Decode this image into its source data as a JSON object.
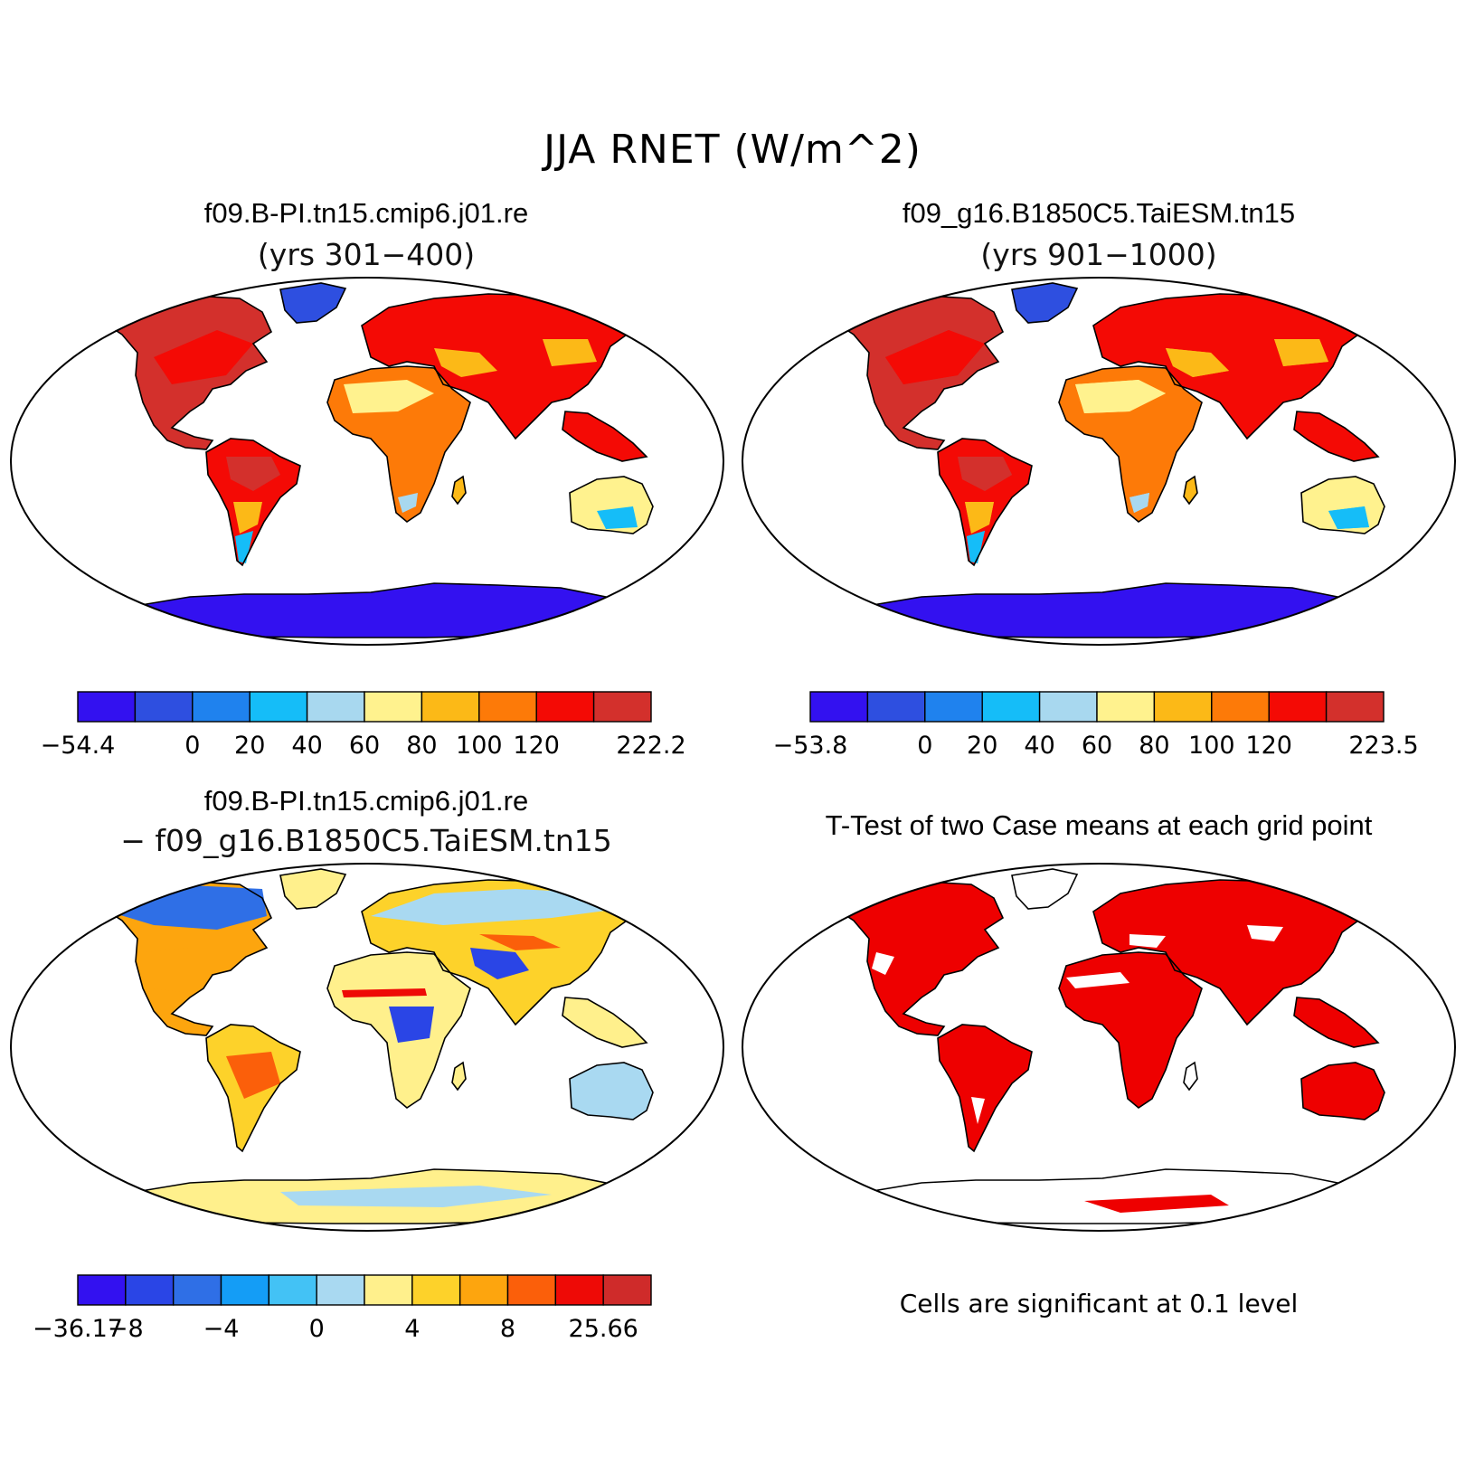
{
  "title": "JJA RNET (W/m^2)",
  "panels": {
    "case1": {
      "title": "f09.B-PI.tn15.cmip6.j01.re",
      "subtitle": "(yrs 301−400)",
      "colors": [
        "#3311f0",
        "#2e4fe0",
        "#1f82ee",
        "#15bdf8",
        "#a8d8ef",
        "#fff28e",
        "#fcb917",
        "#fd7a08",
        "#f40a05",
        "#d3302c"
      ],
      "labels": [
        "−54.4",
        "",
        "0",
        "20",
        "40",
        "60",
        "80",
        "100",
        "120",
        "",
        "222.2"
      ]
    },
    "case2": {
      "title": "f09_g16.B1850C5.TaiESM.tn15",
      "subtitle": "(yrs 901−1000)",
      "colors": [
        "#3311f0",
        "#2e4fe0",
        "#1f82ee",
        "#15bdf8",
        "#a8d8ef",
        "#fff28e",
        "#fcb917",
        "#fd7a08",
        "#f40a05",
        "#d3302c"
      ],
      "labels": [
        "−53.8",
        "",
        "0",
        "20",
        "40",
        "60",
        "80",
        "100",
        "120",
        "",
        "223.5"
      ]
    },
    "diff": {
      "title": "f09.B-PI.tn15.cmip6.j01.re",
      "subtitle": "− f09_g16.B1850C5.TaiESM.tn15",
      "colors": [
        "#3311f0",
        "#2a45e6",
        "#2f6fe6",
        "#149df6",
        "#43c2f5",
        "#a9d9f1",
        "#fff08c",
        "#fdd22a",
        "#fda50e",
        "#fb5f0a",
        "#ee0a06",
        "#cf2b2a"
      ],
      "labels": [
        "−36.17",
        "−8",
        "",
        "−4",
        "",
        "0",
        "",
        "4",
        "",
        "8",
        "",
        "25.66"
      ]
    },
    "ttest": {
      "title": "T-Test of two Case means at each grid point",
      "note": "Cells are significant at 0.1 level"
    }
  }
}
